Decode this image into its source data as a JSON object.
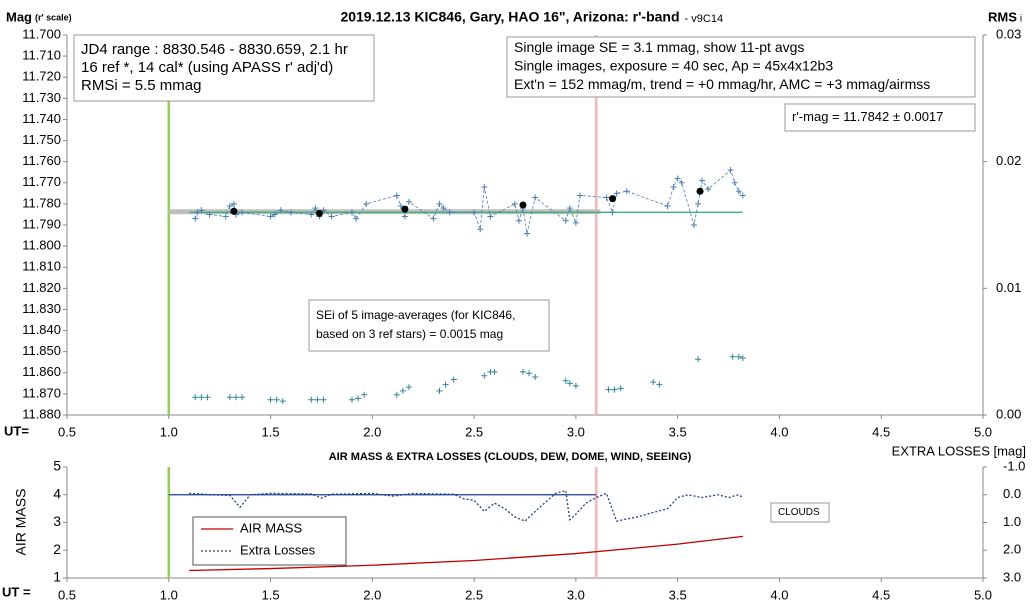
{
  "chart_data": [
    {
      "type": "line",
      "title": "2019.12.13 KIC846, Gary, HAO 16\", Arizona: r'-band",
      "subtitle": "- v9C14",
      "ylabel": "Mag",
      "ylabel_note": "(r' scale)",
      "y2label": "RMS",
      "y2label_note": "i",
      "xlabel": "UT=",
      "xlim": [
        0.5,
        5.0
      ],
      "xticks": [
        0.5,
        {
          "value": 1.0,
          "label": "1.0"
        },
        1.5,
        {
          "value": 2.0,
          "label": "2.0"
        },
        2.5,
        {
          "value": 3.0,
          "label": "3.0"
        },
        3.5,
        {
          "value": 4.0,
          "label": "4.0"
        },
        4.5,
        {
          "value": 5.0,
          "label": "5.0"
        }
      ],
      "ylim": [
        11.88,
        11.7
      ],
      "yticks": [
        {
          "value": 11.7,
          "label": "11.700"
        },
        {
          "value": 11.71,
          "label": "11.710"
        },
        {
          "value": 11.72,
          "label": "11.720"
        },
        {
          "value": 11.73,
          "label": "11.730"
        },
        {
          "value": 11.74,
          "label": "11.740"
        },
        {
          "value": 11.75,
          "label": "11.750"
        },
        {
          "value": 11.76,
          "label": "11.760"
        },
        {
          "value": 11.77,
          "label": "11.770"
        },
        {
          "value": 11.78,
          "label": "11.780"
        },
        {
          "value": 11.79,
          "label": "11.790"
        },
        {
          "value": 11.8,
          "label": "11.800"
        },
        {
          "value": 11.81,
          "label": "11.810"
        },
        {
          "value": 11.82,
          "label": "11.820"
        },
        {
          "value": 11.83,
          "label": "11.830"
        },
        {
          "value": 11.84,
          "label": "11.840"
        },
        {
          "value": 11.85,
          "label": "11.850"
        },
        {
          "value": 11.86,
          "label": "11.860"
        },
        {
          "value": 11.87,
          "label": "11.870"
        },
        {
          "value": 11.88,
          "label": "11.880"
        }
      ],
      "y2lim": [
        0,
        0.03
      ],
      "y2ticks": [
        0.03,
        0.02,
        0.01,
        {
          "value": 0,
          "label": "0.00"
        }
      ],
      "vlines": [
        {
          "x": 1.0,
          "color": "#92d050"
        },
        {
          "x": 3.1,
          "color": "#f4b6b6"
        }
      ],
      "series": [
        {
          "color": "#bfbfbf",
          "line": "thick",
          "marker": "none",
          "x": [
            1.0,
            3.12
          ],
          "values": [
            11.7837,
            11.7837
          ]
        },
        {
          "color": "#3cb371",
          "line": "solid",
          "marker": "none",
          "x": [
            1.1,
            3.82
          ],
          "values": [
            11.784,
            11.784
          ]
        },
        {
          "color": "#4a7ebb",
          "line": "dashed",
          "marker": "plus",
          "x": [
            1.13,
            1.14,
            1.16,
            1.2,
            1.28,
            1.3,
            1.32,
            1.33,
            1.36,
            1.5,
            1.52,
            1.55,
            1.6,
            1.7,
            1.72,
            1.74,
            1.76,
            1.8,
            1.9,
            1.92,
            1.97,
            2.12,
            2.14,
            2.16,
            2.18,
            2.3,
            2.33,
            2.35,
            2.38,
            2.5,
            2.53,
            2.55,
            2.58,
            2.7,
            2.72,
            2.74,
            2.76,
            2.8,
            2.95,
            2.97,
            3.0,
            3.02,
            3.15,
            3.18,
            3.2,
            3.25,
            3.45,
            3.48,
            3.5,
            3.52,
            3.58,
            3.6,
            3.62,
            3.65,
            3.76,
            3.78,
            3.8,
            3.82
          ],
          "values": [
            11.787,
            11.784,
            11.783,
            11.785,
            11.786,
            11.781,
            11.78,
            11.785,
            11.784,
            11.786,
            11.785,
            11.783,
            11.784,
            11.785,
            11.782,
            11.786,
            11.783,
            11.786,
            11.784,
            11.787,
            11.78,
            11.776,
            11.781,
            11.786,
            11.779,
            11.787,
            11.78,
            11.782,
            11.784,
            11.784,
            11.792,
            11.772,
            11.786,
            11.78,
            11.788,
            11.782,
            11.794,
            11.777,
            11.788,
            11.782,
            11.789,
            11.776,
            11.777,
            11.784,
            11.775,
            11.774,
            11.781,
            11.772,
            11.768,
            11.77,
            11.79,
            11.78,
            11.769,
            11.773,
            11.764,
            11.77,
            11.774,
            11.776
          ]
        },
        {
          "color": "#000000",
          "line": "none",
          "marker": "dot",
          "x": [
            1.32,
            1.74,
            2.16,
            2.74,
            3.18,
            3.61
          ],
          "values": [
            11.7835,
            11.7845,
            11.7825,
            11.7805,
            11.7775,
            11.774
          ]
        },
        {
          "color": "#31859c",
          "line": "none",
          "marker": "plus",
          "axis": "y2",
          "x": [
            1.13,
            1.16,
            1.19,
            1.3,
            1.33,
            1.36,
            1.5,
            1.53,
            1.56,
            1.7,
            1.73,
            1.76,
            1.9,
            1.93,
            1.96,
            2.12,
            2.15,
            2.18,
            2.33,
            2.36,
            2.4,
            2.55,
            2.58,
            2.6,
            2.74,
            2.77,
            2.8,
            2.95,
            2.97,
            3.0,
            3.16,
            3.19,
            3.22,
            3.38,
            3.41,
            3.6,
            3.77,
            3.8,
            3.82
          ],
          "values": [
            0.0014,
            0.0014,
            0.0014,
            0.0014,
            0.0014,
            0.0014,
            0.0012,
            0.0012,
            0.0011,
            0.0012,
            0.0012,
            0.0012,
            0.0012,
            0.0013,
            0.0016,
            0.0016,
            0.0019,
            0.0022,
            0.0019,
            0.0024,
            0.0028,
            0.0031,
            0.0034,
            0.0034,
            0.0034,
            0.0033,
            0.003,
            0.0027,
            0.0025,
            0.0023,
            0.002,
            0.002,
            0.0021,
            0.0026,
            0.0024,
            0.0044,
            0.0046,
            0.0046,
            0.0045
          ]
        }
      ],
      "annotations": [
        {
          "lines": [
            "JD4 range : 8830.546 - 8830.659,  2.1  hr",
            "16 ref *, 14 cal* (using APASS r' adj'd)",
            "RMSi = 5.5 mmag"
          ]
        },
        {
          "lines": [
            "Single image SE = 3.1 mmag, show  11-pt avgs",
            "Single images, exposure = 40 sec, Ap = 45x4x12b3",
            "Ext'n = 152 mmag/m, trend =  +0 mmag/hr, AMC = +3 mmag/airmss"
          ]
        },
        {
          "lines": [
            "r'-mag = 11.7842 ± 0.0017"
          ]
        },
        {
          "lines": [
            "SEi of 5 image-averages (for KIC846,",
            "based on 3 ref stars) = 0.0015 mag"
          ]
        }
      ]
    },
    {
      "type": "line",
      "title": "AIR MASS & EXTRA LOSSES (CLOUDS, DEW, DOME, WIND, SEEING)",
      "ylabel": "AIR MASS",
      "y2label": "EXTRA LOSSES [mag]",
      "xlabel": "UT =",
      "xlim": [
        0.5,
        5.0
      ],
      "xticks": [
        0.5,
        {
          "value": 1.0,
          "label": "1.0"
        },
        1.5,
        {
          "value": 2.0,
          "label": "2.0"
        },
        2.5,
        {
          "value": 3.0,
          "label": "3.0"
        },
        3.5,
        {
          "value": 4.0,
          "label": "4.0"
        },
        4.5,
        {
          "value": 5.0,
          "label": "5.0"
        }
      ],
      "ylim": [
        1,
        5
      ],
      "yticks": [
        1,
        2,
        3,
        4,
        5
      ],
      "y2lim": [
        3.0,
        -1.0
      ],
      "y2ticks": [
        {
          "value": -1.0,
          "label": "-1.0"
        },
        {
          "value": 0.0,
          "label": "0.0"
        },
        {
          "value": 1.0,
          "label": "1.0"
        },
        {
          "value": 2.0,
          "label": "2.0"
        },
        {
          "value": 3.0,
          "label": "3.0"
        }
      ],
      "vlines": [
        {
          "x": 1.0,
          "color": "#92d050"
        },
        {
          "x": 3.1,
          "color": "#f4b6b6"
        }
      ],
      "legend": "lower-left",
      "series": [
        {
          "color": "#1f3e8f",
          "line": "solid",
          "marker": "none",
          "axis": "y2",
          "x": [
            1.0,
            3.1
          ],
          "values": [
            0,
            0
          ]
        },
        {
          "name": "AIR MASS",
          "color": "#c00000",
          "line": "solid",
          "marker": "none",
          "x": [
            1.1,
            1.5,
            2.0,
            2.5,
            3.0,
            3.5,
            3.82
          ],
          "values": [
            1.27,
            1.34,
            1.46,
            1.63,
            1.88,
            2.22,
            2.5
          ]
        },
        {
          "name": "Extra Losses",
          "color": "#1f3e8f",
          "line": "dotted",
          "marker": "none",
          "axis": "y2",
          "x": [
            1.1,
            1.15,
            1.2,
            1.3,
            1.35,
            1.4,
            1.5,
            1.7,
            1.75,
            1.8,
            1.9,
            2.0,
            2.1,
            2.15,
            2.2,
            2.3,
            2.4,
            2.45,
            2.5,
            2.55,
            2.6,
            2.65,
            2.7,
            2.75,
            2.8,
            2.9,
            2.95,
            2.97,
            3.0,
            3.05,
            3.1,
            3.15,
            3.2,
            3.3,
            3.45,
            3.5,
            3.55,
            3.62,
            3.7,
            3.75,
            3.8,
            3.82
          ],
          "values": [
            -0.05,
            -0.03,
            0.0,
            0.02,
            0.45,
            0.0,
            -0.05,
            -0.03,
            0.12,
            -0.02,
            -0.03,
            -0.05,
            0.05,
            0.0,
            -0.05,
            -0.03,
            -0.02,
            0.15,
            0.2,
            0.6,
            0.3,
            0.5,
            0.8,
            0.95,
            0.6,
            -0.05,
            -0.15,
            0.9,
            0.7,
            0.3,
            0.1,
            -0.05,
            0.95,
            0.8,
            0.5,
            0.1,
            0.0,
            0.1,
            0.0,
            0.1,
            0.0,
            0.1
          ]
        }
      ],
      "annotations": [
        {
          "lines": [
            "CLOUDS"
          ]
        }
      ]
    }
  ]
}
